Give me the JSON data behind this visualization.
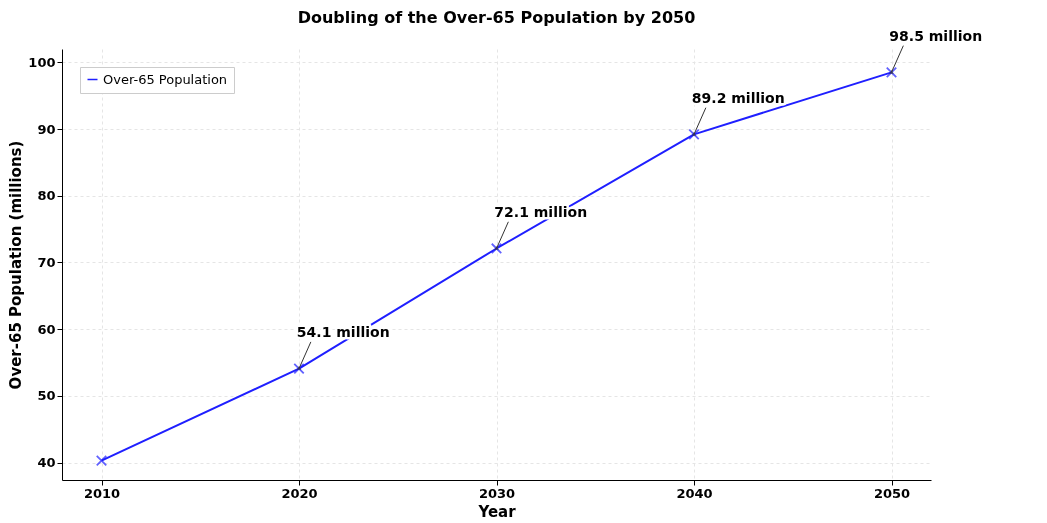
{
  "chart_data": {
    "type": "line",
    "title": "Doubling of the Over-65 Population by 2050",
    "xlabel": "Year",
    "ylabel": "Over-65 Population (millions)",
    "x": [
      2010,
      2020,
      2030,
      2040,
      2050
    ],
    "series": [
      {
        "name": "Over-65 Population",
        "color": "#1f1fff",
        "values": [
          40.3,
          54.1,
          72.1,
          89.2,
          98.5
        ]
      }
    ],
    "xlim": [
      2008,
      2052
    ],
    "xticks": [
      2010,
      2020,
      2030,
      2040,
      2050
    ],
    "ylim": [
      37.4,
      102
    ],
    "yticks": [
      40,
      50,
      60,
      70,
      80,
      90,
      100
    ],
    "annotations": [
      {
        "text": "54.1 million",
        "x": 2020,
        "y": 54.1
      },
      {
        "text": "72.1 million",
        "x": 2030,
        "y": 72.1
      },
      {
        "text": "89.2 million",
        "x": 2040,
        "y": 89.2
      },
      {
        "text": "98.5 million",
        "x": 2050,
        "y": 98.5
      }
    ],
    "grid": true,
    "legend": "top left",
    "marker": "cross",
    "line_style": "solid"
  }
}
